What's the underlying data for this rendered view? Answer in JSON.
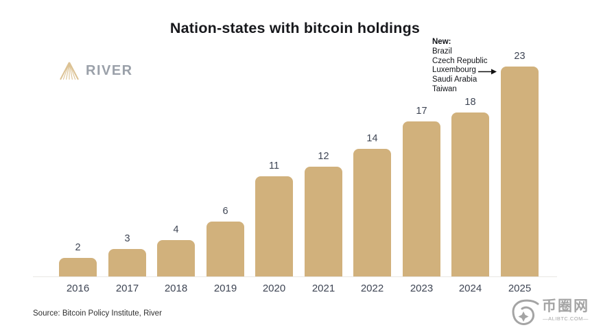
{
  "title": "Nation-states with bitcoin holdings",
  "logo": {
    "text": "RIVER"
  },
  "annotation": {
    "heading": "New:",
    "items": [
      "Brazil",
      "Czech Republic",
      "Luxembourg",
      "Saudi Arabia",
      "Taiwan"
    ],
    "arrow_points_to": "2025"
  },
  "source": "Source: Bitcoin Policy Institute, River",
  "watermark": {
    "cn": "币圈网",
    "domain": "—ALIBTC.COM—"
  },
  "colors": {
    "bar": "#d1b17c",
    "label": "#3e4554",
    "title": "#17181c",
    "logo_gray": "#9aa0a9",
    "logo_gold": "#dcc294",
    "axis": "#e9e7e3",
    "watermark": "#a4a4a4"
  },
  "chart_data": {
    "type": "bar",
    "categories": [
      "2016",
      "2017",
      "2018",
      "2019",
      "2020",
      "2021",
      "2022",
      "2023",
      "2024",
      "2025"
    ],
    "values": [
      2,
      3,
      4,
      6,
      11,
      12,
      14,
      17,
      18,
      23
    ],
    "title": "Nation-states with bitcoin holdings",
    "xlabel": "",
    "ylabel": "",
    "ylim": [
      0,
      24
    ],
    "grid": false,
    "legend": "none",
    "bar_color": "#d1b17c",
    "data_labels": true,
    "annotation": "New: Brazil, Czech Republic, Luxembourg, Saudi Arabia, Taiwan (arrow to 2025 bar)"
  }
}
